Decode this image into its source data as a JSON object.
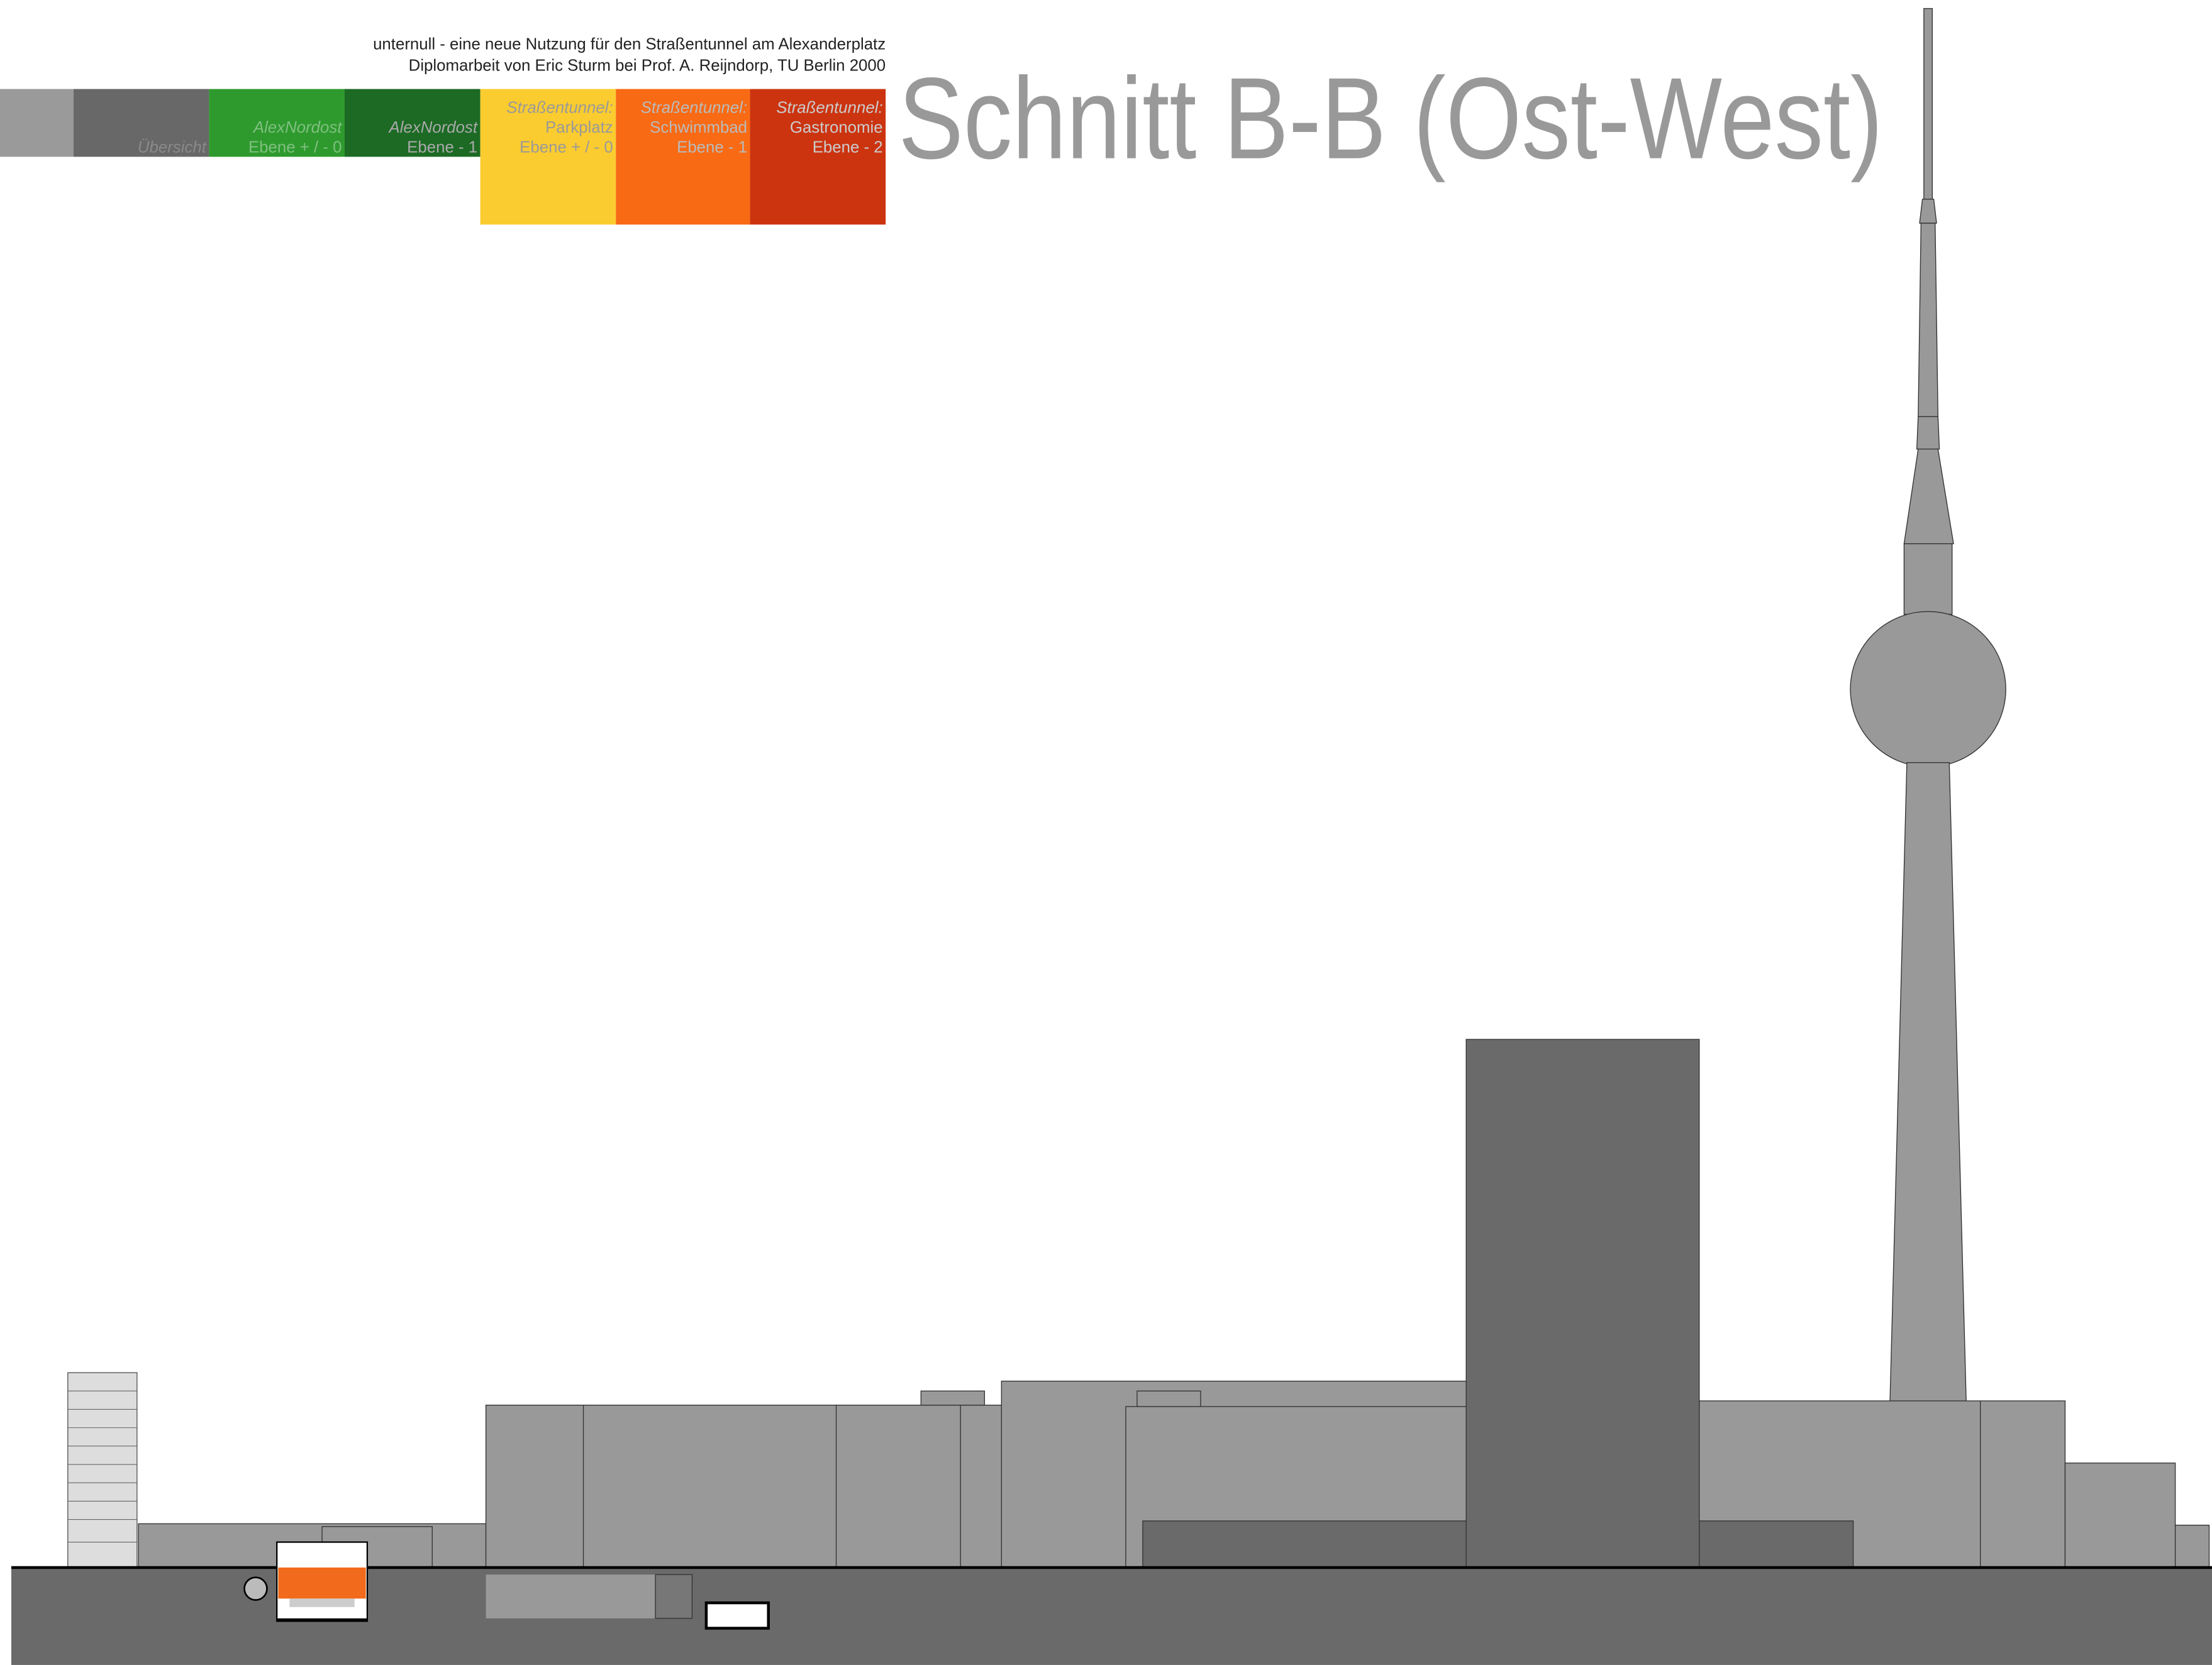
{
  "header": {
    "line1": "unternull - eine neue Nutzung für den Straßentunnel am Alexanderplatz",
    "line2": "Diplomarbeit von Eric Sturm bei Prof. A. Reijndorp, TU Berlin 2000"
  },
  "nav": {
    "items": [
      {
        "lines": [
          "Übersicht"
        ]
      },
      {
        "lines": [
          "AlexNordost",
          "Ebene + / - 0"
        ]
      },
      {
        "lines": [
          "AlexNordost",
          "Ebene - 1"
        ]
      },
      {
        "lines": [
          "Straßentunnel:",
          "Parkplatz",
          "Ebene + / - 0"
        ]
      },
      {
        "lines": [
          "Straßentunnel:",
          "Schwimmbad",
          "Ebene - 1"
        ]
      },
      {
        "lines": [
          "Straßentunnel:",
          "Gastronomie",
          "Ebene - 2"
        ]
      }
    ]
  },
  "title": "Schnitt B-B (Ost-West)"
}
